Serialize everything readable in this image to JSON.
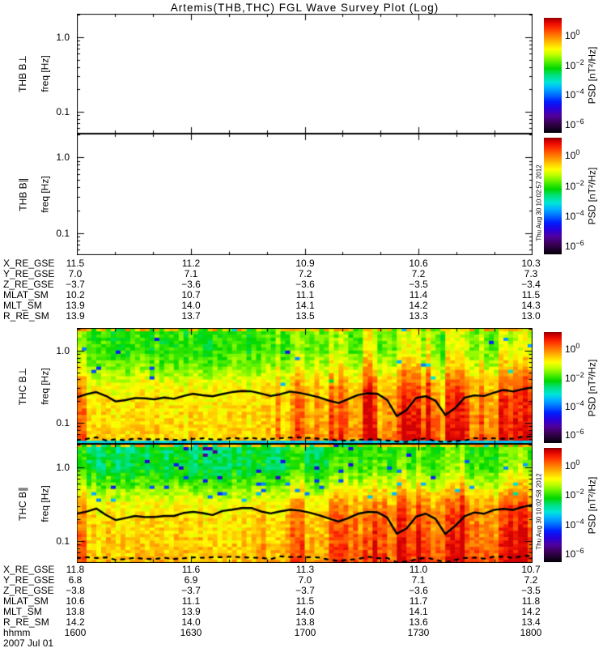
{
  "title": "Artemis(THB,THC) FGL Wave Survey Plot (Log)",
  "panels": [
    {
      "label": "THB B⊥",
      "axis_label": "freq [Hz]",
      "ytick_labels": [
        "1.0",
        "0.1"
      ]
    },
    {
      "label": "THB B∥",
      "axis_label": "freq [Hz]",
      "ytick_labels": [
        "1.0",
        "0.1"
      ]
    },
    {
      "label": "THC B⊥",
      "axis_label": "freq [Hz]",
      "ytick_labels": [
        "1.0",
        "0.1"
      ]
    },
    {
      "label": "THC B∥",
      "axis_label": "freq [Hz]",
      "ytick_labels": [
        "1.0",
        "0.1"
      ]
    }
  ],
  "colorbar": {
    "base": "10",
    "tick_exponents": [
      "0",
      "−2",
      "−4",
      "−6"
    ],
    "axis_label": "PSD [nT²/Hz]"
  },
  "timestamps": {
    "upper": "Thu Aug 30 10:02:57 2012",
    "lower": "Thu Aug 30 10:02:58 2012"
  },
  "ephemeris_top": {
    "rows": [
      {
        "label": "X_RE_GSE",
        "values": [
          "11.5",
          "11.2",
          "10.9",
          "10.6",
          "10.3"
        ]
      },
      {
        "label": "Y_RE_GSE",
        "values": [
          "7.0",
          "7.1",
          "7.2",
          "7.2",
          "7.3"
        ]
      },
      {
        "label": "Z_RE_GSE",
        "values": [
          "−3.7",
          "−3.6",
          "−3.6",
          "−3.5",
          "−3.4"
        ]
      },
      {
        "label": "MLAT_SM",
        "values": [
          "10.2",
          "10.7",
          "11.1",
          "11.4",
          "11.5"
        ]
      },
      {
        "label": "MLT_SM",
        "values": [
          "13.9",
          "14.0",
          "14.1",
          "14.2",
          "14.3"
        ]
      },
      {
        "label": "R_RE_SM",
        "values": [
          "13.9",
          "13.7",
          "13.5",
          "13.3",
          "13.0"
        ]
      }
    ]
  },
  "ephemeris_bottom": {
    "rows": [
      {
        "label": "X_RE_GSE",
        "values": [
          "11.8",
          "11.6",
          "11.3",
          "11.0",
          "10.7"
        ]
      },
      {
        "label": "Y_RE_GSE",
        "values": [
          "6.8",
          "6.9",
          "7.0",
          "7.1",
          "7.2"
        ]
      },
      {
        "label": "Z_RE_GSE",
        "values": [
          "−3.8",
          "−3.7",
          "−3.7",
          "−3.6",
          "−3.5"
        ]
      },
      {
        "label": "MLAT_SM",
        "values": [
          "10.6",
          "11.1",
          "11.5",
          "11.7",
          "11.8"
        ]
      },
      {
        "label": "MLT_SM",
        "values": [
          "13.8",
          "13.9",
          "14.0",
          "14.1",
          "14.2"
        ]
      },
      {
        "label": "R_RE_SM",
        "values": [
          "14.2",
          "14.0",
          "13.8",
          "13.6",
          "13.4"
        ]
      },
      {
        "label": "hhmm",
        "values": [
          "1600",
          "1630",
          "1700",
          "1730",
          "1800"
        ]
      }
    ],
    "date": "2007 Jul 01"
  },
  "chart_data": {
    "type": "heatmap",
    "title": "Artemis(THB,THC) FGL Wave Survey Plot (Log)",
    "date": "2007 Jul 01",
    "x_axis": {
      "label": "hhmm",
      "ticks": [
        "1600",
        "1630",
        "1700",
        "1730",
        "1800"
      ],
      "minor_tick_minutes": 10
    },
    "y_axis": {
      "label": "freq [Hz]",
      "scale": "log",
      "range_hz": [
        0.051,
        2.06
      ],
      "major_ticks": [
        0.1,
        1.0
      ]
    },
    "colorbar": {
      "label": "PSD [nT²/Hz]",
      "scale": "log",
      "tick_values": [
        1,
        0.01,
        0.0001,
        1e-06
      ],
      "top_exponent": 1.15,
      "bottom_exponent": -6.6,
      "stops": [
        [
          0,
          150,
          0,
          0
        ],
        [
          0.03,
          220,
          0,
          0
        ],
        [
          0.08,
          255,
          40,
          0
        ],
        [
          0.15,
          255,
          120,
          0
        ],
        [
          0.22,
          255,
          200,
          0
        ],
        [
          0.27,
          255,
          255,
          0
        ],
        [
          0.32,
          190,
          255,
          0
        ],
        [
          0.38,
          90,
          240,
          0
        ],
        [
          0.44,
          0,
          215,
          0
        ],
        [
          0.5,
          0,
          225,
          130
        ],
        [
          0.56,
          0,
          230,
          215
        ],
        [
          0.61,
          0,
          180,
          255
        ],
        [
          0.67,
          0,
          110,
          255
        ],
        [
          0.73,
          0,
          30,
          255
        ],
        [
          0.79,
          40,
          0,
          220
        ],
        [
          0.85,
          80,
          0,
          160
        ],
        [
          0.91,
          60,
          0,
          90
        ],
        [
          1,
          5,
          0,
          10
        ]
      ]
    },
    "overlay_solid_line_freq_hz": [
      0.23,
      0.25,
      0.27,
      0.23,
      0.195,
      0.21,
      0.225,
      0.215,
      0.21,
      0.22,
      0.215,
      0.235,
      0.25,
      0.24,
      0.23,
      0.25,
      0.265,
      0.28,
      0.275,
      0.25,
      0.235,
      0.25,
      0.27,
      0.26,
      0.245,
      0.22,
      0.2,
      0.185,
      0.21,
      0.24,
      0.255,
      0.25,
      0.21,
      0.125,
      0.15,
      0.22,
      0.24,
      0.2,
      0.125,
      0.16,
      0.22,
      0.245,
      0.23,
      0.26,
      0.28,
      0.27,
      0.29,
      0.305
    ],
    "overlay_dashed_line_note": "intermittent black dashed line near 0.053-0.065 Hz along panel bottoms",
    "streak_clusters": [
      [
        0.47,
        0.5,
        0.7
      ],
      [
        0.555,
        0.6,
        0.9
      ],
      [
        0.63,
        0.665,
        0.8
      ],
      [
        0.7,
        0.78,
        1.0
      ],
      [
        0.815,
        0.865,
        0.9
      ],
      [
        0.925,
        1.0,
        0.95
      ]
    ],
    "panels": [
      {
        "name": "THB B⊥",
        "data": "blank (no data plotted)"
      },
      {
        "name": "THB B∥",
        "data": "blank (no data plotted)"
      },
      {
        "name": "THC B⊥",
        "seed": 11,
        "dark_pixel_prob": 0.01,
        "cyan_bottom_row": true,
        "log10_psd_profile": [
          [
            0,
            -2.1
          ],
          [
            0.2,
            -2.05
          ],
          [
            0.35,
            -1.6
          ],
          [
            0.45,
            -1.15
          ],
          [
            0.52,
            -0.95
          ],
          [
            0.62,
            -0.8
          ],
          [
            0.85,
            -0.7
          ],
          [
            1,
            -0.6
          ]
        ],
        "description": "green (~1e-2 nT2/Hz) above ~0.3 Hz and yellow-orange (~1e-1) below on left half; broadband orange-red enhancement (~1e0) with red vertical streaks after ~16:50"
      },
      {
        "name": "THC B∥",
        "seed": 23,
        "dark_pixel_prob": 0.028,
        "cyan_bottom_row": false,
        "log10_psd_profile": [
          [
            0,
            -2.6
          ],
          [
            0.2,
            -2.45
          ],
          [
            0.35,
            -1.8
          ],
          [
            0.45,
            -1.2
          ],
          [
            0.52,
            -0.95
          ],
          [
            0.62,
            -0.75
          ],
          [
            0.85,
            -0.6
          ],
          [
            1,
            -0.5
          ]
        ],
        "description": "cyan-green at high frequencies on left with scattered dark-blue pixels; yellow-orange below; red streaks after ~16:50"
      }
    ]
  }
}
